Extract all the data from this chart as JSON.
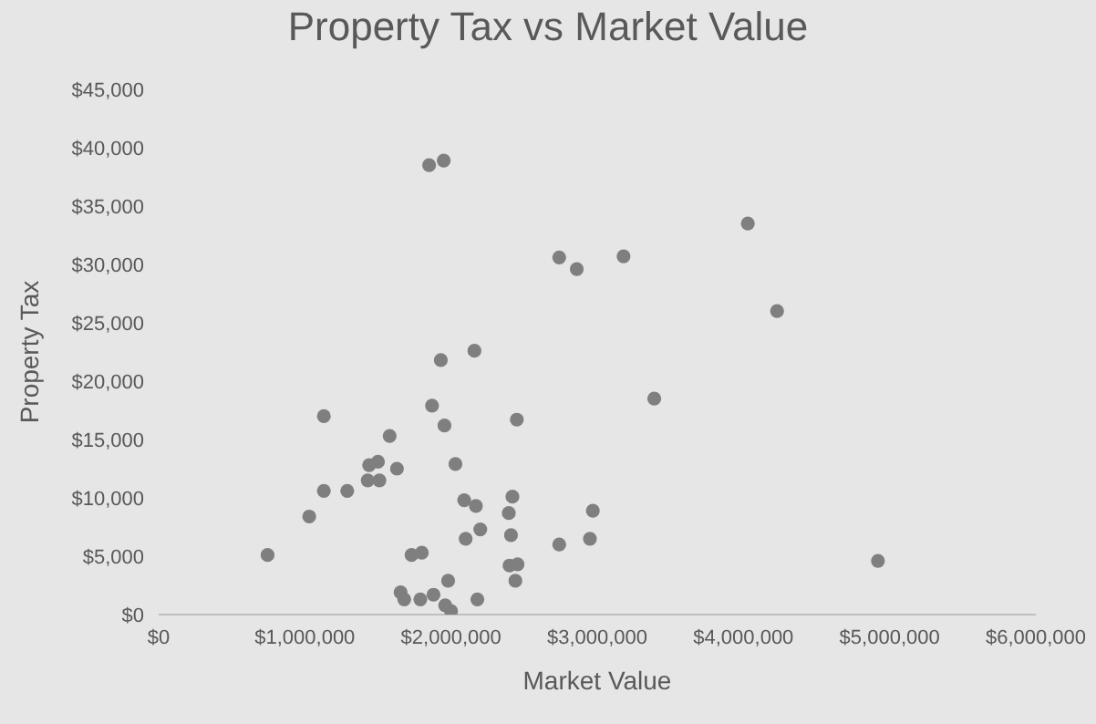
{
  "chart_data": {
    "type": "scatter",
    "title": "Property Tax vs Market Value",
    "xlabel": "Market Value",
    "ylabel": "Property Tax",
    "color": "#7f7f7f",
    "marker": "circle",
    "grid": false,
    "legend": false,
    "x": [
      745000,
      1130000,
      1870000,
      1955000,
      2450000,
      3390000,
      1580000,
      1500000,
      1440000,
      1630000,
      1130000,
      1290000,
      1430000,
      1510000,
      1030000,
      2030000,
      2090000,
      2170000,
      2420000,
      2395000,
      2970000,
      2200000,
      2100000,
      2410000,
      2740000,
      2950000,
      1730000,
      1800000,
      2400000,
      2455000,
      2440000,
      1980000,
      1655000,
      1680000,
      1790000,
      1880000,
      2180000,
      1960000,
      2000000,
      1930000,
      2160000,
      1850000,
      1950000,
      2740000,
      2860000,
      3180000,
      4030000,
      4230000,
      4920000
    ],
    "values": [
      5100,
      17000,
      17900,
      16200,
      16700,
      18500,
      15300,
      13100,
      12800,
      12500,
      10600,
      10600,
      11500,
      11500,
      8400,
      12900,
      9800,
      9300,
      10100,
      8700,
      8900,
      7300,
      6500,
      6800,
      6000,
      6500,
      5100,
      5300,
      4200,
      4300,
      2900,
      2900,
      1900,
      1300,
      1300,
      1700,
      1300,
      800,
      300,
      21800,
      22600,
      38500,
      38900,
      30600,
      29600,
      30700,
      33500,
      26000,
      4600
    ],
    "xlim": [
      0,
      6000000
    ],
    "xticks": [
      {
        "value": 0,
        "label": "$0"
      },
      {
        "value": 1000000,
        "label": "$1,000,000"
      },
      {
        "value": 2000000,
        "label": "$2,000,000"
      },
      {
        "value": 3000000,
        "label": "$3,000,000"
      },
      {
        "value": 4000000,
        "label": "$4,000,000"
      },
      {
        "value": 5000000,
        "label": "$5,000,000"
      },
      {
        "value": 6000000,
        "label": "$6,000,000"
      }
    ],
    "ylim": [
      0,
      45000
    ],
    "yticks": [
      {
        "value": 0,
        "label": "$0"
      },
      {
        "value": 5000,
        "label": "$5,000"
      },
      {
        "value": 10000,
        "label": "$10,000"
      },
      {
        "value": 15000,
        "label": "$15,000"
      },
      {
        "value": 20000,
        "label": "$20,000"
      },
      {
        "value": 25000,
        "label": "$25,000"
      },
      {
        "value": 30000,
        "label": "$30,000"
      },
      {
        "value": 35000,
        "label": "$35,000"
      },
      {
        "value": 40000,
        "label": "$40,000"
      },
      {
        "value": 45000,
        "label": "$45,000"
      }
    ]
  }
}
